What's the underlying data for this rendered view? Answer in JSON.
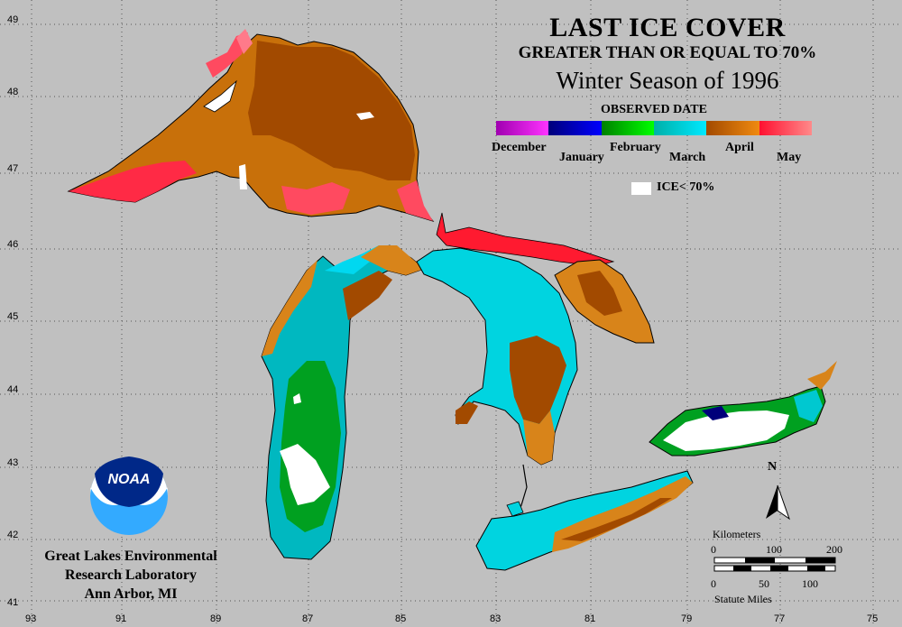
{
  "title": "LAST ICE COVER",
  "subtitle": "GREATER THAN OR EQUAL TO 70%",
  "season": "Winter Season of 1996",
  "legend": {
    "title": "OBSERVED DATE",
    "months": [
      {
        "label": "December",
        "colors": [
          "#a000b0",
          "#ff33ff"
        ]
      },
      {
        "label": "January",
        "colors": [
          "#00007a",
          "#0000ff"
        ]
      },
      {
        "label": "February",
        "colors": [
          "#008000",
          "#00ff00"
        ]
      },
      {
        "label": "March",
        "colors": [
          "#00b0a8",
          "#00e8ff"
        ]
      },
      {
        "label": "April",
        "colors": [
          "#a24a00",
          "#f08a10"
        ]
      },
      {
        "label": "May",
        "colors": [
          "#ff1030",
          "#ff8a8a"
        ]
      }
    ],
    "ice_label": "ICE< 70%",
    "ice_color": "#ffffff"
  },
  "latitudes": [
    "49",
    "48",
    "47",
    "46",
    "45",
    "44",
    "43",
    "42",
    "41"
  ],
  "longitudes": [
    "93",
    "91",
    "89",
    "87",
    "85",
    "83",
    "81",
    "79",
    "77",
    "75"
  ],
  "lab": {
    "logo_text": "NOAA",
    "line1": "Great Lakes Environmental",
    "line2": "Research Laboratory",
    "line3": "Ann Arbor, MI"
  },
  "north_label": "N",
  "scale": {
    "km_label": "Kilometers",
    "km_ticks": [
      "0",
      "100",
      "200"
    ],
    "mi_ticks": [
      "0",
      "50",
      "100"
    ],
    "mi_label": "Statute Miles"
  },
  "colors": {
    "background": "#c0c0c0",
    "grid": "#555555",
    "shore": "#000000"
  }
}
